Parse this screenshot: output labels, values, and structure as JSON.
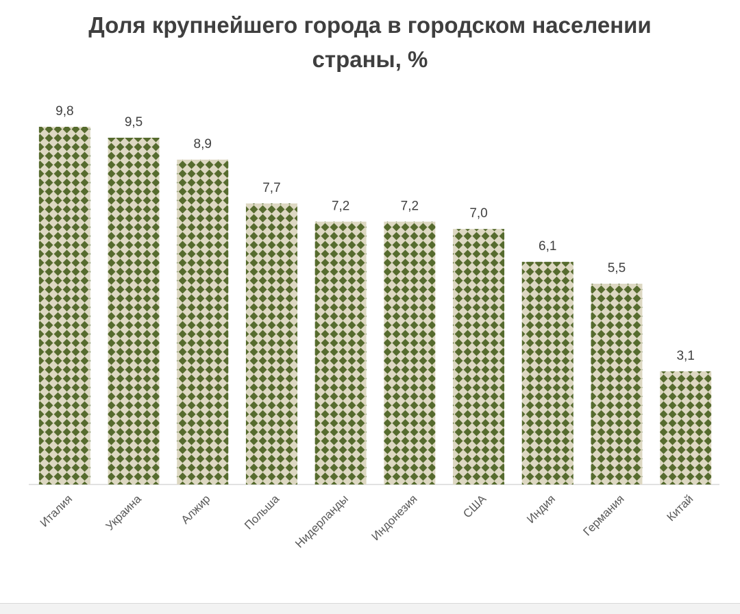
{
  "chart_data": {
    "type": "bar",
    "title_lines": [
      "Доля крупнейшего города в городском населении",
      "страны, %"
    ],
    "categories": [
      "Италия",
      "Украина",
      "Алжир",
      "Польша",
      "Нидерланды",
      "Индонезия",
      "США",
      "Индия",
      "Германия",
      "Китай"
    ],
    "values": [
      9.8,
      9.5,
      8.9,
      7.7,
      7.2,
      7.2,
      7.0,
      6.1,
      5.5,
      3.1
    ],
    "value_labels": [
      "9,8",
      "9,5",
      "8,9",
      "7,7",
      "7,2",
      "7,2",
      "7,0",
      "6,1",
      "5,5",
      "3,1"
    ],
    "xlabel": "",
    "ylabel": "",
    "ylim": [
      0,
      9.8
    ],
    "grid": false,
    "legend": "none",
    "colors": {
      "bar_pattern_fg": "#566b2e",
      "bar_pattern_bg": "#ddd8c2",
      "axis": "#d9d9d9",
      "title": "#3f3f3f",
      "value_text": "#404040",
      "category_text": "#595959"
    }
  }
}
